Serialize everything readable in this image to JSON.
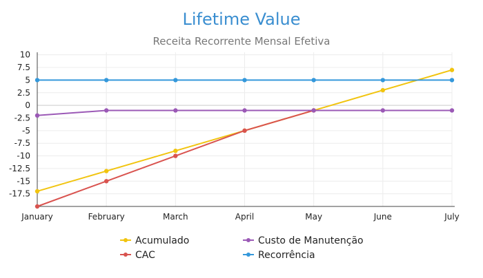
{
  "chart_data": {
    "type": "line",
    "title": "Lifetime Value",
    "subtitle": "Receita Recorrente Mensal Efetiva",
    "xlabel": "",
    "ylabel": "",
    "categories": [
      "January",
      "February",
      "March",
      "April",
      "May",
      "June",
      "July"
    ],
    "ylim": [
      -20,
      10.5
    ],
    "yticks": [
      10,
      7.5,
      5,
      2.5,
      0,
      -2.5,
      -5,
      -7.5,
      -10,
      -12.5,
      -15,
      -17.5
    ],
    "ytick_labels": [
      "10",
      "7.5",
      "5",
      "2.5",
      "0",
      "-2.5",
      "-5",
      "-7.5",
      "-10",
      "-12.5",
      "-15",
      "-17.5"
    ],
    "grid": true,
    "legend_position": "bottom",
    "series": [
      {
        "name": "Acumulado",
        "color": "#f1c40f",
        "values": [
          -17,
          -13,
          -9,
          -5,
          -1,
          3,
          7
        ]
      },
      {
        "name": "CAC",
        "color": "#d9534f",
        "values": [
          -20,
          -15,
          -10,
          -5,
          -1,
          null,
          null
        ]
      },
      {
        "name": "Custo de Manutenção",
        "color": "#9b59b6",
        "values": [
          -2,
          -1,
          -1,
          -1,
          -1,
          -1,
          -1
        ]
      },
      {
        "name": "Recorrência",
        "color": "#3498db",
        "values": [
          5,
          5,
          5,
          5,
          5,
          5,
          5
        ]
      }
    ]
  }
}
